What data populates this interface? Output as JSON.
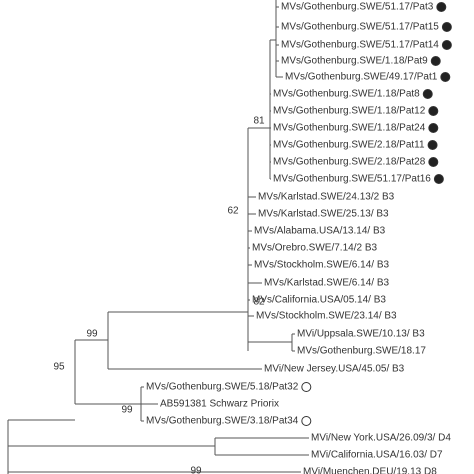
{
  "tree": {
    "leaves": [
      {
        "label": "MVs/Gothenburg.SWE/51.17/Pat3",
        "marker": "filled"
      },
      {
        "label": "MVs/Gothenburg.SWE/51.17/Pat15",
        "marker": "filled"
      },
      {
        "label": "MVs/Gothenburg.SWE/51.17/Pat14",
        "marker": "filled"
      },
      {
        "label": "MVs/Gothenburg.SWE/1.18/Pat9",
        "marker": "filled"
      },
      {
        "label": "MVs/Gothenburg.SWE/49.17/Pat1",
        "marker": "filled"
      },
      {
        "label": "MVs/Gothenburg.SWE/1.18/Pat8",
        "marker": "filled"
      },
      {
        "label": "MVs/Gothenburg.SWE/1.18/Pat12",
        "marker": "filled"
      },
      {
        "label": "MVs/Gothenburg.SWE/1.18/Pat24",
        "marker": "filled"
      },
      {
        "label": "MVs/Gothenburg.SWE/2.18/Pat11",
        "marker": "filled"
      },
      {
        "label": "MVs/Gothenburg.SWE/2.18/Pat28",
        "marker": "filled"
      },
      {
        "label": "MVs/Gothenburg.SWE/51.17/Pat16",
        "marker": "filled"
      },
      {
        "label": "MVs/Karlstad.SWE/24.13/2 B3"
      },
      {
        "label": "MVs/Karlstad.SWE/25.13/ B3"
      },
      {
        "label": "MVs/Alabama.USA/13.14/ B3"
      },
      {
        "label": "MVs/Orebro.SWE/7.14/2 B3"
      },
      {
        "label": "MVs/Stockholm.SWE/6.14/ B3"
      },
      {
        "label": "MVs/Karlstad.SWE/6.14/ B3"
      },
      {
        "label": "MVs/California.USA/05.14/ B3"
      },
      {
        "label": "MVs/Stockholm.SWE/23.14/ B3"
      },
      {
        "label": "MVi/Uppsala.SWE/10.13/ B3"
      },
      {
        "label": "MVs/Gothenburg.SWE/18.17"
      },
      {
        "label": "MVi/New Jersey.USA/45.05/ B3"
      },
      {
        "label": "MVs/Gothenburg.SWE/5.18/Pat32",
        "marker": "open"
      },
      {
        "label": "AB591381 Schwarz Priorix"
      },
      {
        "label": "MVs/Gothenburg.SWE/3.18/Pat34",
        "marker": "open"
      },
      {
        "label": "MVi/New York.USA/26.09/3/ D4"
      },
      {
        "label": "MVi/California.USA/16.03/ D7"
      },
      {
        "label": "MVi/Muenchen.DEU/19.13 D8"
      }
    ],
    "bootstrap": [
      "81",
      "62",
      "82",
      "99",
      "95",
      "99",
      "99"
    ]
  }
}
